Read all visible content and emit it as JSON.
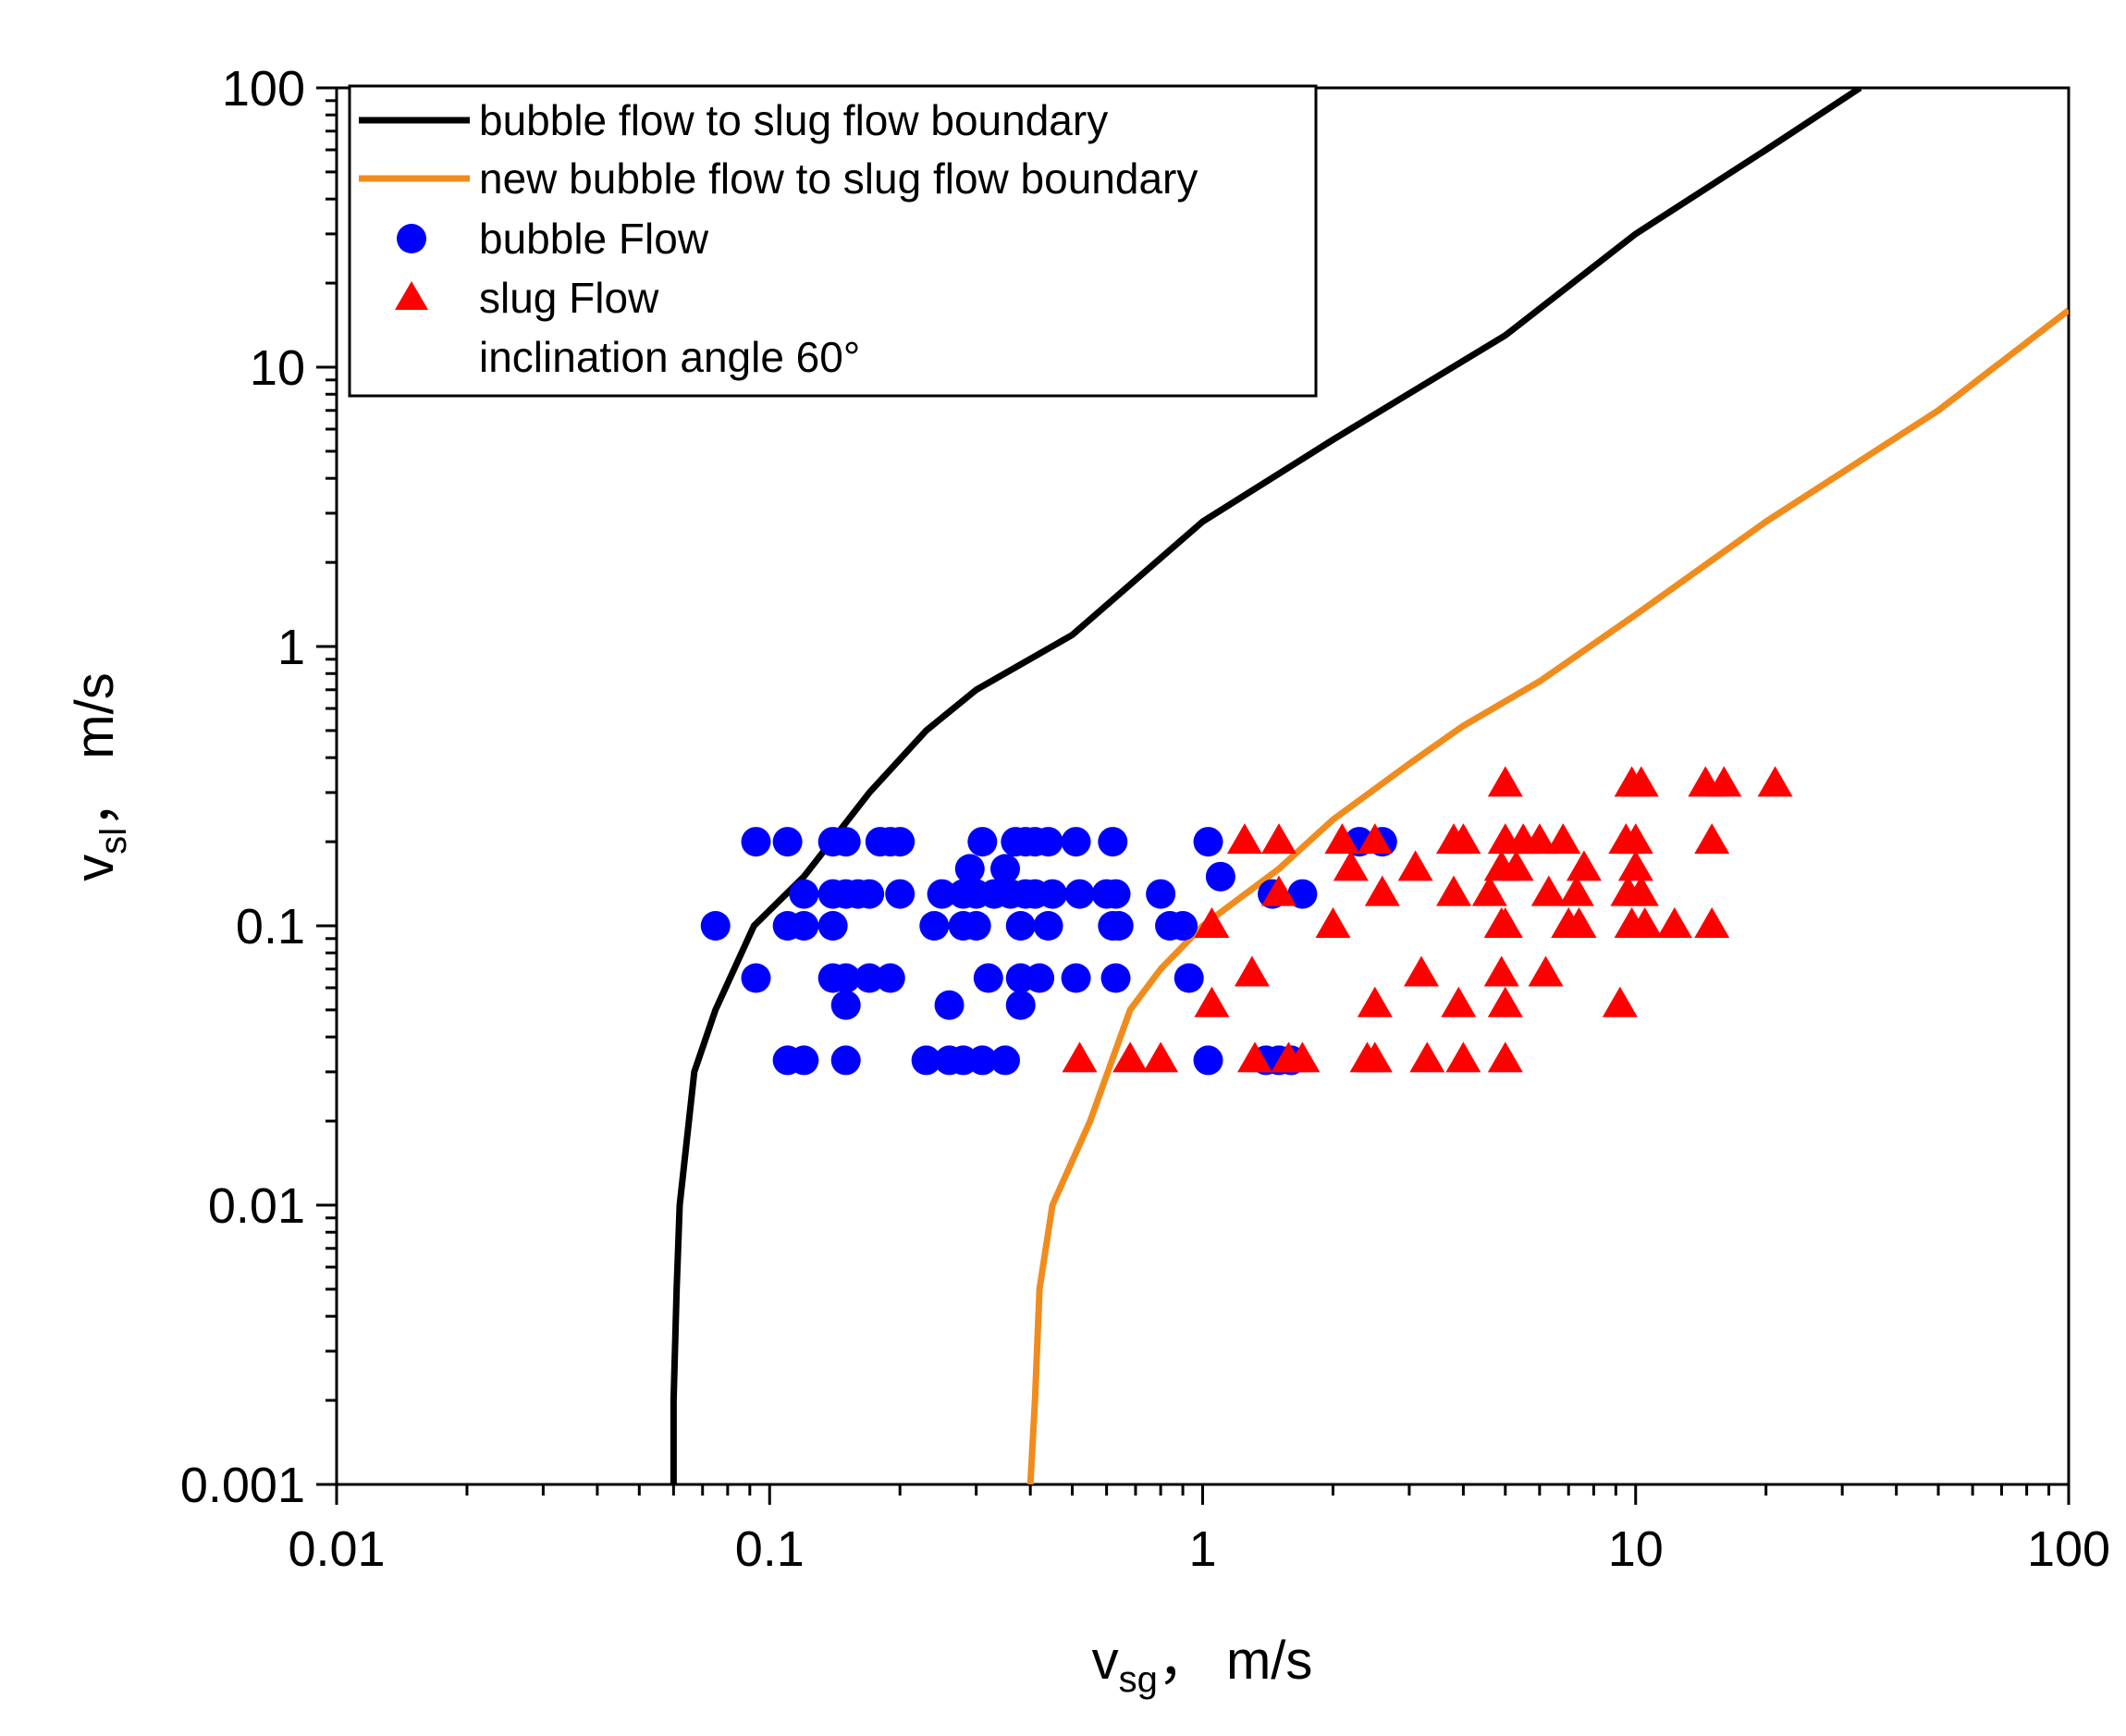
{
  "chart_data": {
    "type": "scatter",
    "title": "",
    "xlabel": {
      "main": "v",
      "sub": "sg",
      "unit": "，  m/s"
    },
    "ylabel": {
      "main": "v",
      "sub": "sl",
      "unit": "，  m/s"
    },
    "xscale": "log",
    "yscale": "log",
    "xlim": [
      0.01,
      100
    ],
    "ylim": [
      0.001,
      100
    ],
    "x_ticks": [
      {
        "value": 0.01,
        "label": "0.01"
      },
      {
        "value": 0.1,
        "label": "0.1"
      },
      {
        "value": 1,
        "label": "1"
      },
      {
        "value": 10,
        "label": "10"
      },
      {
        "value": 100,
        "label": "100"
      }
    ],
    "y_ticks": [
      {
        "value": 0.001,
        "label": "0.001"
      },
      {
        "value": 0.01,
        "label": "0.01"
      },
      {
        "value": 0.1,
        "label": "0.1"
      },
      {
        "value": 1,
        "label": "1"
      },
      {
        "value": 10,
        "label": "10"
      },
      {
        "value": 100,
        "label": "100"
      }
    ],
    "grid": false,
    "legend_position": "top-left",
    "legend": [
      {
        "label": "bubble flow to slug flow boundary",
        "kind": "line",
        "color": "#000000"
      },
      {
        "label": "new bubble flow to slug flow boundary",
        "kind": "line",
        "color": "#f08c1e"
      },
      {
        "label": "bubble Flow",
        "kind": "circle",
        "color": "#0000ff"
      },
      {
        "label": "slug Flow",
        "kind": "triangle",
        "color": "#ff0000"
      },
      {
        "label": "inclination angle 60°",
        "kind": "text",
        "color": "#000000"
      }
    ],
    "series": [
      {
        "name": "bubble flow to slug flow boundary",
        "kind": "line",
        "color": "#000000",
        "points": [
          [
            0.06,
            0.001
          ],
          [
            0.06,
            0.002
          ],
          [
            0.061,
            0.005
          ],
          [
            0.062,
            0.01
          ],
          [
            0.067,
            0.03
          ],
          [
            0.075,
            0.05
          ],
          [
            0.092,
            0.1
          ],
          [
            0.12,
            0.15
          ],
          [
            0.17,
            0.3
          ],
          [
            0.23,
            0.5
          ],
          [
            0.3,
            0.7
          ],
          [
            0.5,
            1.1
          ],
          [
            1,
            2.8
          ],
          [
            2,
            5.5
          ],
          [
            5,
            13
          ],
          [
            10,
            30
          ],
          [
            20,
            60
          ],
          [
            33,
            100
          ]
        ]
      },
      {
        "name": "new bubble flow to slug flow boundary",
        "kind": "line",
        "color": "#f08c1e",
        "points": [
          [
            0.4,
            0.001
          ],
          [
            0.41,
            0.002
          ],
          [
            0.42,
            0.005
          ],
          [
            0.45,
            0.01
          ],
          [
            0.55,
            0.02
          ],
          [
            0.68,
            0.05
          ],
          [
            0.8,
            0.07
          ],
          [
            1,
            0.1
          ],
          [
            1.5,
            0.16
          ],
          [
            2,
            0.24
          ],
          [
            3,
            0.38
          ],
          [
            4,
            0.52
          ],
          [
            6,
            0.75
          ],
          [
            10,
            1.3
          ],
          [
            20,
            2.8
          ],
          [
            50,
            7
          ],
          [
            100,
            16
          ]
        ]
      },
      {
        "name": "bubble Flow",
        "kind": "scatter",
        "marker": "circle",
        "color": "#0000ff",
        "points": [
          [
            0.093,
            0.2
          ],
          [
            0.11,
            0.2
          ],
          [
            0.14,
            0.2
          ],
          [
            0.15,
            0.2
          ],
          [
            0.18,
            0.2
          ],
          [
            0.19,
            0.2
          ],
          [
            0.2,
            0.2
          ],
          [
            0.31,
            0.2
          ],
          [
            0.37,
            0.2
          ],
          [
            0.39,
            0.2
          ],
          [
            0.41,
            0.2
          ],
          [
            0.44,
            0.2
          ],
          [
            0.51,
            0.2
          ],
          [
            0.62,
            0.2
          ],
          [
            1.03,
            0.2
          ],
          [
            2.3,
            0.2
          ],
          [
            2.6,
            0.2
          ],
          [
            0.12,
            0.13
          ],
          [
            0.14,
            0.13
          ],
          [
            0.15,
            0.13
          ],
          [
            0.16,
            0.13
          ],
          [
            0.17,
            0.13
          ],
          [
            0.2,
            0.13
          ],
          [
            0.25,
            0.13
          ],
          [
            0.28,
            0.13
          ],
          [
            0.3,
            0.13
          ],
          [
            0.33,
            0.13
          ],
          [
            0.36,
            0.13
          ],
          [
            0.39,
            0.13
          ],
          [
            0.41,
            0.13
          ],
          [
            0.45,
            0.13
          ],
          [
            0.52,
            0.13
          ],
          [
            0.6,
            0.13
          ],
          [
            0.63,
            0.13
          ],
          [
            0.8,
            0.13
          ],
          [
            1.1,
            0.15
          ],
          [
            1.45,
            0.13
          ],
          [
            1.7,
            0.13
          ],
          [
            0.29,
            0.16
          ],
          [
            0.35,
            0.16
          ],
          [
            0.075,
            0.1
          ],
          [
            0.11,
            0.1
          ],
          [
            0.12,
            0.1
          ],
          [
            0.14,
            0.1
          ],
          [
            0.24,
            0.1
          ],
          [
            0.28,
            0.1
          ],
          [
            0.3,
            0.1
          ],
          [
            0.38,
            0.1
          ],
          [
            0.44,
            0.1
          ],
          [
            0.62,
            0.1
          ],
          [
            0.64,
            0.1
          ],
          [
            0.84,
            0.1
          ],
          [
            0.9,
            0.1
          ],
          [
            0.093,
            0.065
          ],
          [
            0.14,
            0.065
          ],
          [
            0.15,
            0.065
          ],
          [
            0.17,
            0.065
          ],
          [
            0.19,
            0.065
          ],
          [
            0.32,
            0.065
          ],
          [
            0.38,
            0.065
          ],
          [
            0.42,
            0.065
          ],
          [
            0.51,
            0.065
          ],
          [
            0.63,
            0.065
          ],
          [
            0.93,
            0.065
          ],
          [
            0.15,
            0.052
          ],
          [
            0.26,
            0.052
          ],
          [
            0.38,
            0.052
          ],
          [
            0.11,
            0.033
          ],
          [
            0.12,
            0.033
          ],
          [
            0.15,
            0.033
          ],
          [
            0.23,
            0.033
          ],
          [
            0.26,
            0.033
          ],
          [
            0.28,
            0.033
          ],
          [
            0.31,
            0.033
          ],
          [
            0.35,
            0.033
          ],
          [
            1.03,
            0.033
          ],
          [
            1.4,
            0.033
          ],
          [
            1.5,
            0.033
          ],
          [
            1.6,
            0.033
          ]
        ]
      },
      {
        "name": "slug Flow",
        "kind": "scatter",
        "marker": "triangle",
        "color": "#ff0000",
        "points": [
          [
            5,
            0.32
          ],
          [
            9.8,
            0.32
          ],
          [
            10.3,
            0.32
          ],
          [
            14.5,
            0.32
          ],
          [
            16,
            0.32
          ],
          [
            21,
            0.32
          ],
          [
            1.25,
            0.2
          ],
          [
            1.5,
            0.2
          ],
          [
            2.1,
            0.2
          ],
          [
            2.5,
            0.2
          ],
          [
            3.8,
            0.2
          ],
          [
            4,
            0.2
          ],
          [
            5,
            0.2
          ],
          [
            5.5,
            0.2
          ],
          [
            6,
            0.2
          ],
          [
            6.8,
            0.2
          ],
          [
            9.5,
            0.2
          ],
          [
            10,
            0.2
          ],
          [
            15,
            0.2
          ],
          [
            2.2,
            0.16
          ],
          [
            3.1,
            0.16
          ],
          [
            4.9,
            0.16
          ],
          [
            5.3,
            0.16
          ],
          [
            7.6,
            0.16
          ],
          [
            10,
            0.16
          ],
          [
            1.5,
            0.13
          ],
          [
            2.6,
            0.13
          ],
          [
            3.8,
            0.13
          ],
          [
            4.6,
            0.13
          ],
          [
            6.3,
            0.13
          ],
          [
            7.3,
            0.13
          ],
          [
            9.6,
            0.13
          ],
          [
            10.3,
            0.13
          ],
          [
            1.05,
            0.1
          ],
          [
            2,
            0.1
          ],
          [
            4.9,
            0.1
          ],
          [
            5,
            0.1
          ],
          [
            7,
            0.1
          ],
          [
            7.4,
            0.1
          ],
          [
            9.8,
            0.1
          ],
          [
            10.5,
            0.1
          ],
          [
            12.3,
            0.1
          ],
          [
            15,
            0.1
          ],
          [
            1.3,
            0.067
          ],
          [
            3.2,
            0.067
          ],
          [
            4.9,
            0.067
          ],
          [
            6.2,
            0.067
          ],
          [
            1.05,
            0.052
          ],
          [
            2.5,
            0.052
          ],
          [
            3.9,
            0.052
          ],
          [
            5,
            0.052
          ],
          [
            9.2,
            0.052
          ],
          [
            0.52,
            0.033
          ],
          [
            0.68,
            0.033
          ],
          [
            0.8,
            0.033
          ],
          [
            1.32,
            0.033
          ],
          [
            1.58,
            0.033
          ],
          [
            1.7,
            0.033
          ],
          [
            2.4,
            0.033
          ],
          [
            2.5,
            0.033
          ],
          [
            3.3,
            0.033
          ],
          [
            4,
            0.033
          ],
          [
            5,
            0.033
          ]
        ]
      }
    ]
  }
}
